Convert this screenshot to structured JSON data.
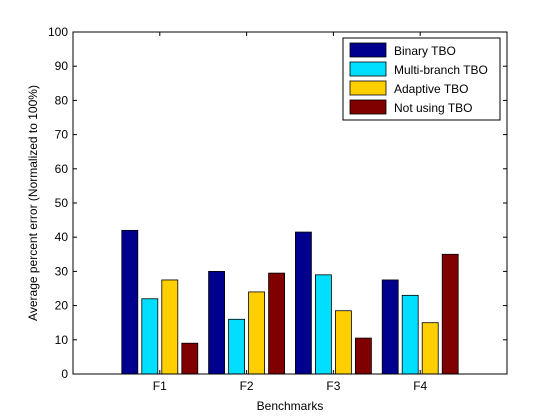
{
  "chart_data": {
    "type": "bar",
    "title": "",
    "xlabel": "Benchmarks",
    "ylabel": "Average percent error (Normalized to 100%)",
    "ylim": [
      0,
      100
    ],
    "yticks": [
      0,
      10,
      20,
      30,
      40,
      50,
      60,
      70,
      80,
      90,
      100
    ],
    "categories": [
      "F1",
      "F2",
      "F3",
      "F4"
    ],
    "grid": false,
    "legend_position": "top-right",
    "series": [
      {
        "name": "Binary TBO",
        "color": "#00008F",
        "values": [
          42,
          30,
          41.5,
          27.5
        ]
      },
      {
        "name": "Multi-branch TBO",
        "color": "#00DFFF",
        "values": [
          22,
          16,
          29,
          23
        ]
      },
      {
        "name": "Adaptive TBO",
        "color": "#FFCF00",
        "values": [
          27.5,
          24,
          18.5,
          15
        ]
      },
      {
        "name": "Not using TBO",
        "color": "#800000",
        "values": [
          9,
          29.5,
          10.5,
          35
        ]
      }
    ]
  }
}
